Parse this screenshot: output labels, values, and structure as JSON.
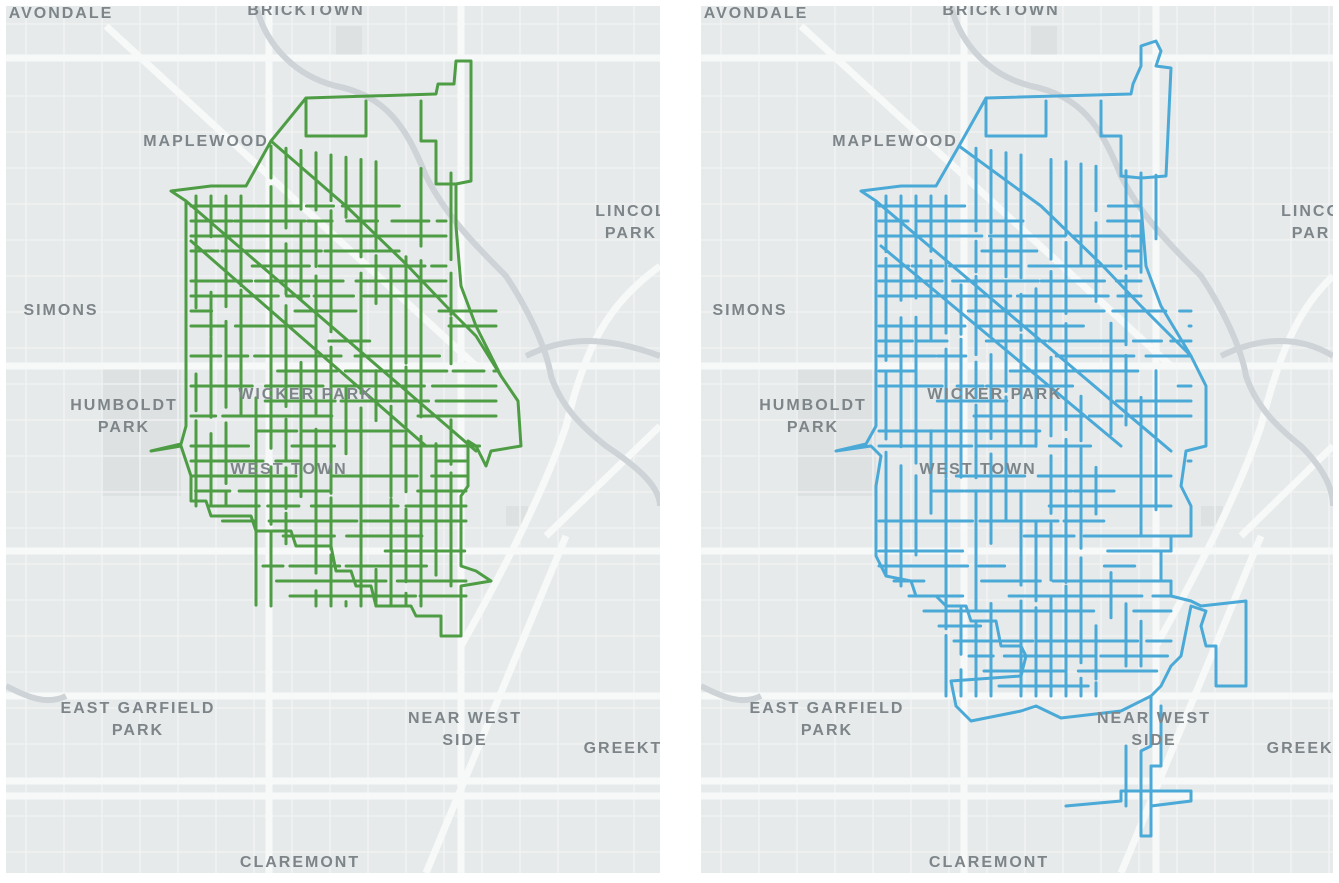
{
  "panels": [
    {
      "id": "left",
      "route_color": "#4e9d45",
      "labels": {
        "avondale": "AVONDALE",
        "bricktown": "BRICKTOWN",
        "maplewood": "MAPLEWOOD",
        "lincoln_park": "LINCOL\nPARK",
        "simons": "SIMONS",
        "humboldt_park": "HUMBOLDT\nPARK",
        "wicker_park": "WICKER PARK",
        "west_town": "WEST TOWN",
        "east_garfield_park": "EAST GARFIELD\nPARK",
        "near_west_side": "NEAR WEST\nSIDE",
        "greektown": "GREEKTO",
        "claremont": "CLAREMONT"
      }
    },
    {
      "id": "right",
      "route_color": "#4aa9d6",
      "labels": {
        "avondale": "AVONDALE",
        "bricktown": "BRICKTOWN",
        "maplewood": "MAPLEWOOD",
        "lincoln_park": "LINCO\nPAR",
        "simons": "SIMONS",
        "humboldt_park": "HUMBOLDT\nPARK",
        "wicker_park": "WICKER PARK",
        "west_town": "WEST TOWN",
        "east_garfield_park": "EAST GARFIELD\nPARK",
        "near_west_side": "NEAR WEST\nSIDE",
        "greektown": "GREEKT",
        "claremont": "CLAREMONT"
      }
    }
  ]
}
